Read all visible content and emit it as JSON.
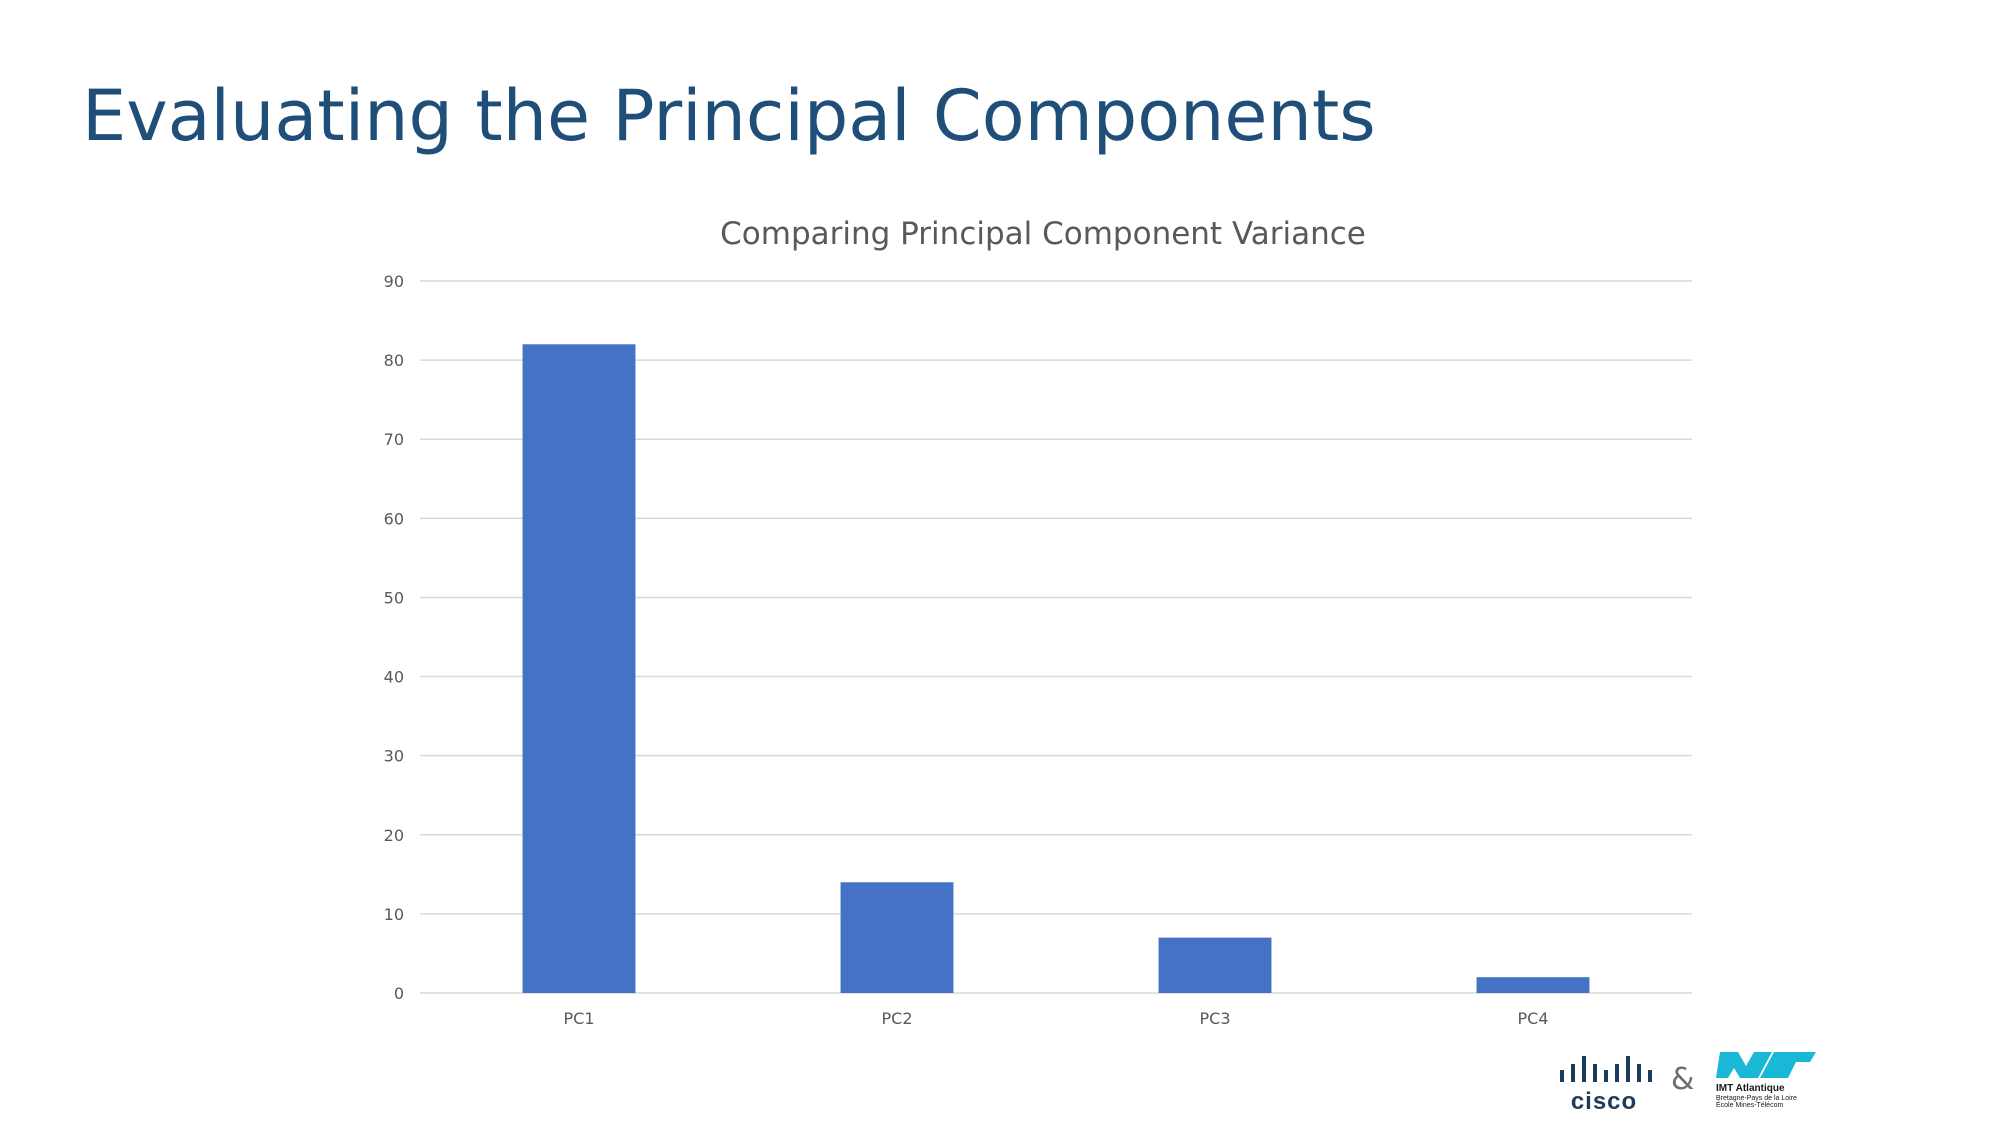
{
  "slide": {
    "title": "Evaluating the Principal Components"
  },
  "chart_data": {
    "type": "bar",
    "title": "Comparing Principal Component Variance",
    "xlabel": "",
    "ylabel": "",
    "categories": [
      "PC1",
      "PC2",
      "PC3",
      "PC4"
    ],
    "values": [
      82,
      14,
      7,
      2
    ],
    "ylim": [
      0,
      90
    ],
    "yticks": [
      0,
      10,
      20,
      30,
      40,
      50,
      60,
      70,
      80,
      90
    ],
    "grid": true,
    "legend": "none",
    "bar_color": "#4472c4",
    "grid_color": "#d9d9d9"
  },
  "logos": {
    "cisco": "cisco",
    "ampersand": "&",
    "imt_name": "IMT Atlantique",
    "imt_line1": "Bretagne-Pays de la Loire",
    "imt_line2": "École Mines-Télécom"
  }
}
